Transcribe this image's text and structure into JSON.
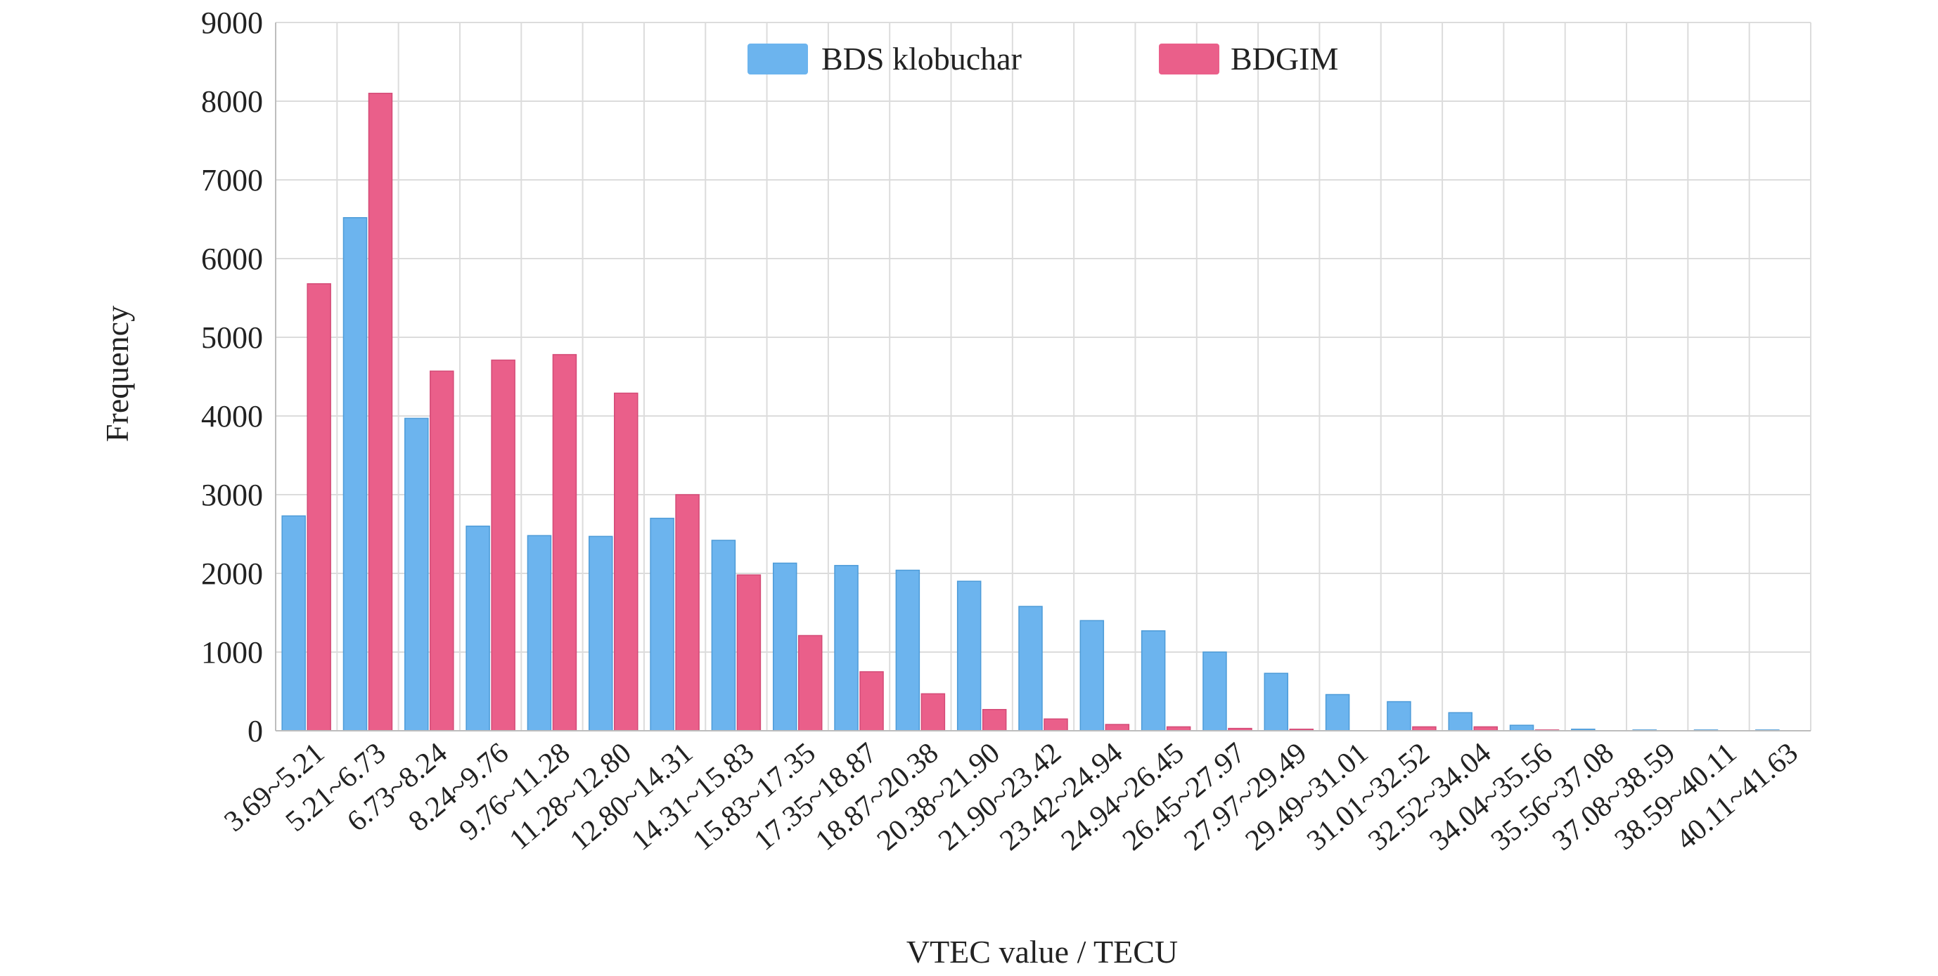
{
  "chart_data": {
    "type": "bar",
    "xlabel": "VTEC value / TECU",
    "ylabel": "Frequency",
    "ylim": [
      0,
      9000
    ],
    "yticks": [
      0,
      1000,
      2000,
      3000,
      4000,
      5000,
      6000,
      7000,
      8000,
      9000
    ],
    "grid": true,
    "legend_position": "top-center",
    "categories": [
      "3.69~5.21",
      "5.21~6.73",
      "6.73~8.24",
      "8.24~9.76",
      "9.76~11.28",
      "11.28~12.80",
      "12.80~14.31",
      "14.31~15.83",
      "15.83~17.35",
      "17.35~18.87",
      "18.87~20.38",
      "20.38~21.90",
      "21.90~23.42",
      "23.42~24.94",
      "24.94~26.45",
      "26.45~27.97",
      "27.97~29.49",
      "29.49~31.01",
      "31.01~32.52",
      "32.52~34.04",
      "34.04~35.56",
      "35.56~37.08",
      "37.08~38.59",
      "38.59~40.11",
      "40.11~41.63"
    ],
    "series": [
      {
        "name": "BDS klobuchar",
        "color": "#6cb4ee",
        "values": [
          2730,
          6520,
          3970,
          2600,
          2480,
          2470,
          2700,
          2420,
          2130,
          2100,
          2040,
          1900,
          1580,
          1400,
          1270,
          1000,
          730,
          460,
          370,
          230,
          70,
          20,
          10,
          10,
          10
        ]
      },
      {
        "name": "BDGIM",
        "color": "#ea5f8a",
        "values": [
          5680,
          8100,
          4570,
          4710,
          4780,
          4290,
          3000,
          1980,
          1210,
          750,
          470,
          270,
          150,
          80,
          50,
          30,
          20,
          0,
          50,
          50,
          10,
          0,
          0,
          0,
          0
        ]
      }
    ]
  }
}
